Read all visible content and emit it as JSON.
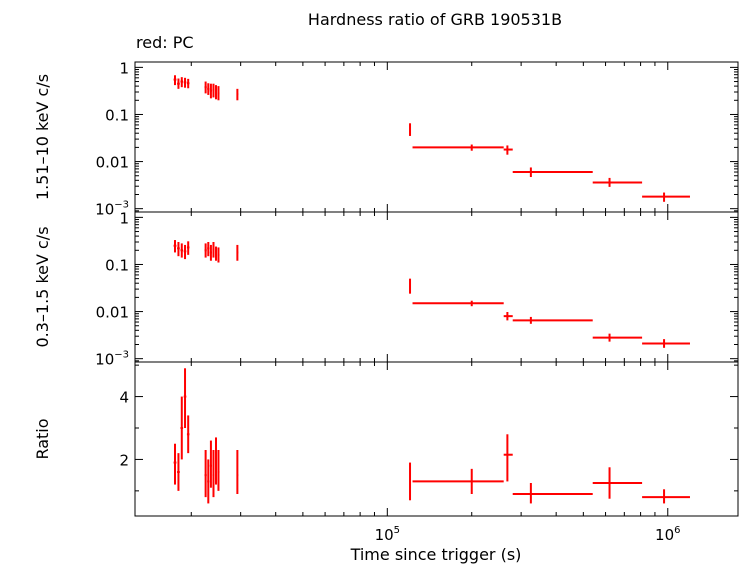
{
  "chart_data": {
    "type": "scatter",
    "title": "Hardness ratio of GRB 190531B",
    "subtitle": "red: PC",
    "xlabel": "Time since trigger (s)",
    "x_scale": "log",
    "xlim": [
      12600,
      1780000
    ],
    "x_ticks": [
      {
        "value": 100000,
        "base": "10",
        "exp": "5"
      },
      {
        "value": 1000000,
        "base": "10",
        "exp": "6"
      }
    ],
    "series_color": "#ff0000",
    "panels": [
      {
        "id": "hard",
        "ylabel": "1.51–10 keV c/s",
        "y_scale": "log",
        "ylim": [
          0.00085,
          1.3
        ],
        "y_ticks": [
          {
            "value": 1,
            "label": "1"
          },
          {
            "value": 0.1,
            "label": "0.1"
          },
          {
            "value": 0.01,
            "label": "0.01"
          },
          {
            "value": 0.001,
            "label": "10",
            "exp": "−3"
          }
        ],
        "points": [
          {
            "x": 17500,
            "y": 0.55,
            "xlo": 17300,
            "xhi": 17700,
            "ylo": 0.42,
            "yhi": 0.68
          },
          {
            "x": 18000,
            "y": 0.45,
            "xlo": 17800,
            "xhi": 18200,
            "ylo": 0.35,
            "yhi": 0.58
          },
          {
            "x": 18500,
            "y": 0.5,
            "xlo": 18300,
            "xhi": 18700,
            "ylo": 0.38,
            "yhi": 0.62
          },
          {
            "x": 19000,
            "y": 0.48,
            "xlo": 18800,
            "xhi": 19200,
            "ylo": 0.37,
            "yhi": 0.6
          },
          {
            "x": 19500,
            "y": 0.46,
            "xlo": 19300,
            "xhi": 19700,
            "ylo": 0.36,
            "yhi": 0.57
          },
          {
            "x": 22500,
            "y": 0.38,
            "xlo": 22300,
            "xhi": 22700,
            "ylo": 0.28,
            "yhi": 0.5
          },
          {
            "x": 23000,
            "y": 0.35,
            "xlo": 22800,
            "xhi": 23200,
            "ylo": 0.26,
            "yhi": 0.46
          },
          {
            "x": 23500,
            "y": 0.32,
            "xlo": 23300,
            "xhi": 23700,
            "ylo": 0.22,
            "yhi": 0.45
          },
          {
            "x": 24000,
            "y": 0.33,
            "xlo": 23800,
            "xhi": 24200,
            "ylo": 0.23,
            "yhi": 0.45
          },
          {
            "x": 24500,
            "y": 0.3,
            "xlo": 24300,
            "xhi": 24700,
            "ylo": 0.21,
            "yhi": 0.42
          },
          {
            "x": 25000,
            "y": 0.28,
            "xlo": 24800,
            "xhi": 25200,
            "ylo": 0.2,
            "yhi": 0.4
          },
          {
            "x": 29200,
            "y": 0.27,
            "xlo": 29000,
            "xhi": 29400,
            "ylo": 0.2,
            "yhi": 0.35
          },
          {
            "x": 120500,
            "y": 0.048,
            "xlo": 120000,
            "xhi": 121000,
            "ylo": 0.035,
            "yhi": 0.065
          },
          {
            "x": 200000,
            "y": 0.02,
            "xlo": 123000,
            "xhi": 260000,
            "ylo": 0.017,
            "yhi": 0.023
          },
          {
            "x": 268000,
            "y": 0.018,
            "xlo": 260000,
            "xhi": 280000,
            "ylo": 0.014,
            "yhi": 0.022
          },
          {
            "x": 325000,
            "y": 0.006,
            "xlo": 280000,
            "xhi": 540000,
            "ylo": 0.0047,
            "yhi": 0.0075
          },
          {
            "x": 620000,
            "y": 0.0036,
            "xlo": 540000,
            "xhi": 810000,
            "ylo": 0.0029,
            "yhi": 0.0045
          },
          {
            "x": 970000,
            "y": 0.0018,
            "xlo": 810000,
            "xhi": 1200000,
            "ylo": 0.0014,
            "yhi": 0.0022
          }
        ]
      },
      {
        "id": "soft",
        "ylabel": "0.3–1.5 keV c/s",
        "y_scale": "log",
        "ylim": [
          0.00085,
          1.3
        ],
        "y_ticks": [
          {
            "value": 1,
            "label": "1"
          },
          {
            "value": 0.1,
            "label": "0.1"
          },
          {
            "value": 0.01,
            "label": "0.01"
          },
          {
            "value": 0.001,
            "label": "10",
            "exp": "−3"
          }
        ],
        "points": [
          {
            "x": 17500,
            "y": 0.25,
            "xlo": 17300,
            "xhi": 17700,
            "ylo": 0.18,
            "yhi": 0.33
          },
          {
            "x": 18000,
            "y": 0.22,
            "xlo": 17800,
            "xhi": 18200,
            "ylo": 0.15,
            "yhi": 0.3
          },
          {
            "x": 18500,
            "y": 0.2,
            "xlo": 18300,
            "xhi": 18700,
            "ylo": 0.14,
            "yhi": 0.28
          },
          {
            "x": 19000,
            "y": 0.19,
            "xlo": 18800,
            "xhi": 19200,
            "ylo": 0.13,
            "yhi": 0.26
          },
          {
            "x": 19500,
            "y": 0.23,
            "xlo": 19300,
            "xhi": 19700,
            "ylo": 0.16,
            "yhi": 0.31
          },
          {
            "x": 22500,
            "y": 0.2,
            "xlo": 22300,
            "xhi": 22700,
            "ylo": 0.14,
            "yhi": 0.28
          },
          {
            "x": 23000,
            "y": 0.22,
            "xlo": 22800,
            "xhi": 23200,
            "ylo": 0.15,
            "yhi": 0.3
          },
          {
            "x": 23500,
            "y": 0.18,
            "xlo": 23300,
            "xhi": 23700,
            "ylo": 0.12,
            "yhi": 0.26
          },
          {
            "x": 24000,
            "y": 0.21,
            "xlo": 23800,
            "xhi": 24200,
            "ylo": 0.14,
            "yhi": 0.3
          },
          {
            "x": 24500,
            "y": 0.17,
            "xlo": 24300,
            "xhi": 24700,
            "ylo": 0.12,
            "yhi": 0.24
          },
          {
            "x": 25000,
            "y": 0.16,
            "xlo": 24800,
            "xhi": 25200,
            "ylo": 0.11,
            "yhi": 0.23
          },
          {
            "x": 29200,
            "y": 0.18,
            "xlo": 29000,
            "xhi": 29400,
            "ylo": 0.12,
            "yhi": 0.26
          },
          {
            "x": 120500,
            "y": 0.035,
            "xlo": 120000,
            "xhi": 121000,
            "ylo": 0.024,
            "yhi": 0.05
          },
          {
            "x": 200000,
            "y": 0.015,
            "xlo": 123000,
            "xhi": 260000,
            "ylo": 0.013,
            "yhi": 0.017
          },
          {
            "x": 268000,
            "y": 0.008,
            "xlo": 260000,
            "xhi": 280000,
            "ylo": 0.0065,
            "yhi": 0.0098
          },
          {
            "x": 325000,
            "y": 0.0065,
            "xlo": 280000,
            "xhi": 540000,
            "ylo": 0.0055,
            "yhi": 0.0077
          },
          {
            "x": 620000,
            "y": 0.0028,
            "xlo": 540000,
            "xhi": 810000,
            "ylo": 0.0023,
            "yhi": 0.0034
          },
          {
            "x": 970000,
            "y": 0.0021,
            "xlo": 810000,
            "xhi": 1200000,
            "ylo": 0.0017,
            "yhi": 0.0026
          }
        ]
      },
      {
        "id": "ratio",
        "ylabel": "Ratio",
        "y_scale": "linear",
        "ylim": [
          0.2,
          5.1
        ],
        "y_ticks": [
          {
            "value": 2,
            "label": "2"
          },
          {
            "value": 4,
            "label": "4"
          }
        ],
        "points": [
          {
            "x": 17500,
            "y": 1.9,
            "xlo": 17300,
            "xhi": 17700,
            "ylo": 1.2,
            "yhi": 2.5
          },
          {
            "x": 18000,
            "y": 1.6,
            "xlo": 17800,
            "xhi": 18200,
            "ylo": 1.0,
            "yhi": 2.2
          },
          {
            "x": 18500,
            "y": 3.0,
            "xlo": 18300,
            "xhi": 18700,
            "ylo": 2.0,
            "yhi": 4.0
          },
          {
            "x": 19000,
            "y": 4.0,
            "xlo": 18800,
            "xhi": 19200,
            "ylo": 3.0,
            "yhi": 4.9
          },
          {
            "x": 19500,
            "y": 2.8,
            "xlo": 19300,
            "xhi": 19700,
            "ylo": 2.2,
            "yhi": 3.4
          },
          {
            "x": 22500,
            "y": 1.5,
            "xlo": 22300,
            "xhi": 22700,
            "ylo": 0.8,
            "yhi": 2.3
          },
          {
            "x": 23000,
            "y": 1.3,
            "xlo": 22800,
            "xhi": 23200,
            "ylo": 0.6,
            "yhi": 2.0
          },
          {
            "x": 23500,
            "y": 1.8,
            "xlo": 23300,
            "xhi": 23700,
            "ylo": 1.1,
            "yhi": 2.6
          },
          {
            "x": 24000,
            "y": 1.5,
            "xlo": 23800,
            "xhi": 24200,
            "ylo": 0.8,
            "yhi": 2.3
          },
          {
            "x": 24500,
            "y": 1.9,
            "xlo": 24300,
            "xhi": 24700,
            "ylo": 1.2,
            "yhi": 2.7
          },
          {
            "x": 25000,
            "y": 1.6,
            "xlo": 24800,
            "xhi": 25200,
            "ylo": 1.0,
            "yhi": 2.3
          },
          {
            "x": 29200,
            "y": 1.5,
            "xlo": 29000,
            "xhi": 29400,
            "ylo": 0.9,
            "yhi": 2.3
          },
          {
            "x": 120500,
            "y": 1.3,
            "xlo": 120000,
            "xhi": 121000,
            "ylo": 0.7,
            "yhi": 1.9
          },
          {
            "x": 200000,
            "y": 1.3,
            "xlo": 123000,
            "xhi": 260000,
            "ylo": 0.9,
            "yhi": 1.7
          },
          {
            "x": 268000,
            "y": 2.15,
            "xlo": 260000,
            "xhi": 280000,
            "ylo": 1.3,
            "yhi": 2.8
          },
          {
            "x": 325000,
            "y": 0.9,
            "xlo": 280000,
            "xhi": 540000,
            "ylo": 0.6,
            "yhi": 1.25
          },
          {
            "x": 620000,
            "y": 1.25,
            "xlo": 540000,
            "xhi": 810000,
            "ylo": 0.75,
            "yhi": 1.75
          },
          {
            "x": 970000,
            "y": 0.8,
            "xlo": 810000,
            "xhi": 1200000,
            "ylo": 0.6,
            "yhi": 1.05
          }
        ]
      }
    ]
  }
}
